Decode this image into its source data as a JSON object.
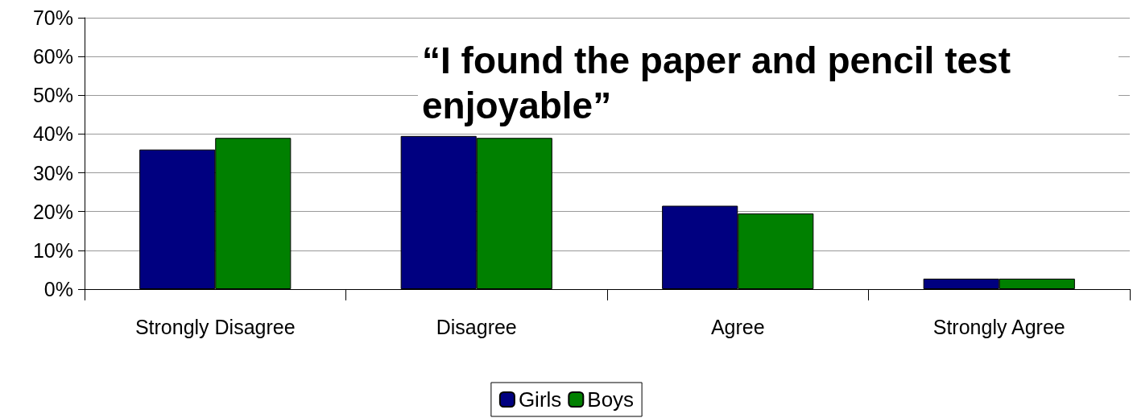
{
  "chart_data": {
    "type": "bar",
    "title": "“I found the paper and pencil test enjoyable”",
    "categories": [
      "Strongly Disagree",
      "Disagree",
      "Agree",
      "Strongly Agree"
    ],
    "series": [
      {
        "name": "Girls",
        "color": "#000080",
        "values": [
          36,
          39.5,
          21.5,
          2.7
        ]
      },
      {
        "name": "Boys",
        "color": "#008000",
        "values": [
          39,
          39,
          19.5,
          2.7
        ]
      }
    ],
    "ylim": [
      0,
      70
    ],
    "yticks": [
      {
        "value": 0,
        "label": "0%"
      },
      {
        "value": 10,
        "label": "10%"
      },
      {
        "value": 20,
        "label": "20%"
      },
      {
        "value": 30,
        "label": "30%"
      },
      {
        "value": 40,
        "label": "40%"
      },
      {
        "value": 50,
        "label": "50%"
      },
      {
        "value": 60,
        "label": "60%"
      },
      {
        "value": 70,
        "label": "70%"
      }
    ],
    "grid": "y",
    "legend": "bottom"
  }
}
